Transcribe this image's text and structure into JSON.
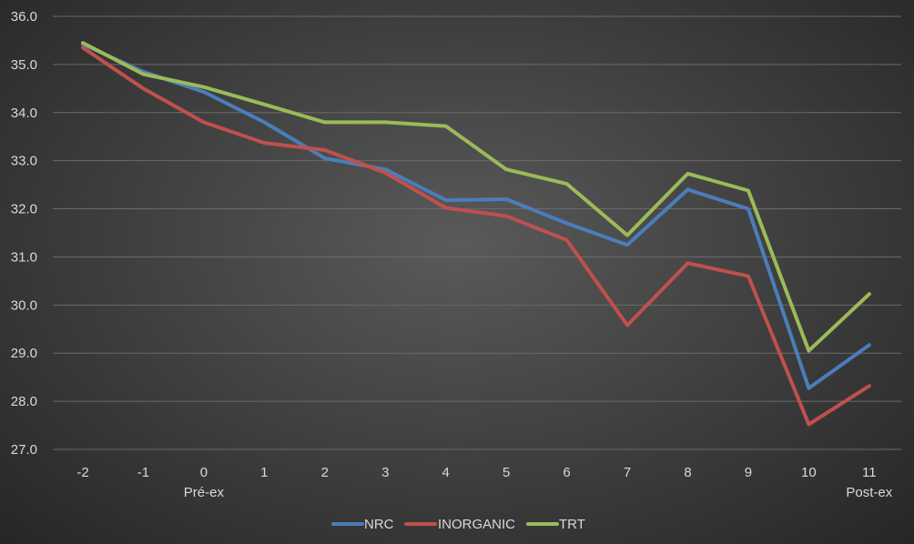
{
  "chart_data": {
    "type": "line",
    "x": [
      "-2",
      "-1",
      "0",
      "1",
      "2",
      "3",
      "4",
      "5",
      "6",
      "7",
      "8",
      "9",
      "10",
      "11"
    ],
    "x_sublabels": [
      {
        "x": "0",
        "text": "Pré-ex"
      },
      {
        "x": "11",
        "text": "Post-ex"
      }
    ],
    "ylim": [
      27.0,
      36.0
    ],
    "yticks": [
      "27.0",
      "28.0",
      "29.0",
      "30.0",
      "31.0",
      "32.0",
      "33.0",
      "34.0",
      "35.0",
      "36.0"
    ],
    "grid": true,
    "legend_position": "bottom",
    "series": [
      {
        "name": "NRC",
        "color": "#4a7ebb",
        "values": [
          35.42,
          34.85,
          34.43,
          33.8,
          33.05,
          32.82,
          32.18,
          32.2,
          31.7,
          31.25,
          32.4,
          32.0,
          28.27,
          29.17
        ]
      },
      {
        "name": "INORGANIC",
        "color": "#c0504d",
        "values": [
          35.35,
          34.5,
          33.8,
          33.37,
          33.22,
          32.75,
          32.02,
          31.85,
          31.35,
          29.58,
          30.87,
          30.6,
          27.52,
          28.32
        ]
      },
      {
        "name": "TRT",
        "color": "#9bbb59",
        "values": [
          35.45,
          34.8,
          34.53,
          34.17,
          33.8,
          33.8,
          33.72,
          32.82,
          32.52,
          31.45,
          32.73,
          32.38,
          29.05,
          30.23
        ]
      }
    ]
  }
}
